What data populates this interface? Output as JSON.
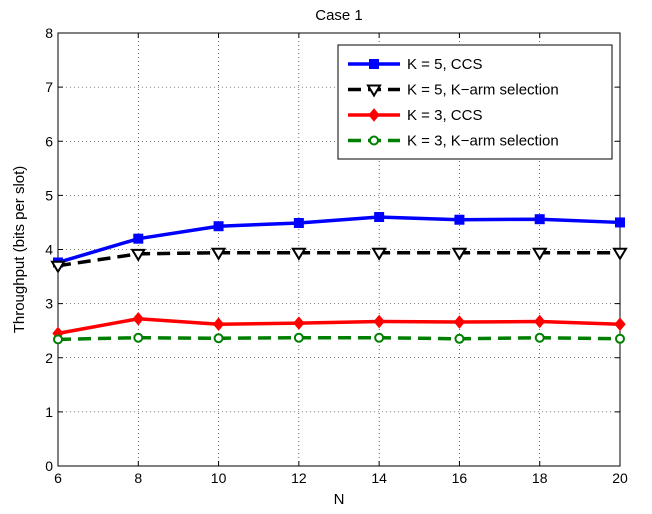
{
  "chart_data": {
    "type": "line",
    "title": "Case 1",
    "xlabel": "N",
    "ylabel": "Throughput (bits per slot)",
    "xlim": [
      6,
      20
    ],
    "ylim": [
      0,
      8
    ],
    "xticks": [
      6,
      8,
      10,
      12,
      14,
      16,
      18,
      20
    ],
    "yticks": [
      0,
      1,
      2,
      3,
      4,
      5,
      6,
      7,
      8
    ],
    "grid": true,
    "legend_position": "top-right",
    "x": [
      6,
      8,
      10,
      12,
      14,
      16,
      18,
      20
    ],
    "series": [
      {
        "name": "K = 5, CCS",
        "color": "#0000ff",
        "dash": "solid",
        "marker": "square",
        "values": [
          3.76,
          4.2,
          4.43,
          4.49,
          4.6,
          4.55,
          4.56,
          4.5
        ]
      },
      {
        "name": "K = 5, K−arm selection",
        "color": "#000000",
        "dash": "dashed",
        "marker": "triangle-down",
        "values": [
          3.7,
          3.92,
          3.94,
          3.94,
          3.94,
          3.94,
          3.94,
          3.94
        ]
      },
      {
        "name": "K = 3, CCS",
        "color": "#ff0000",
        "dash": "solid",
        "marker": "diamond",
        "values": [
          2.45,
          2.72,
          2.62,
          2.64,
          2.67,
          2.66,
          2.67,
          2.62
        ]
      },
      {
        "name": "K = 3, K−arm selection",
        "color": "#008000",
        "dash": "dashed",
        "marker": "circle",
        "values": [
          2.34,
          2.37,
          2.36,
          2.37,
          2.37,
          2.35,
          2.37,
          2.35
        ]
      }
    ]
  }
}
